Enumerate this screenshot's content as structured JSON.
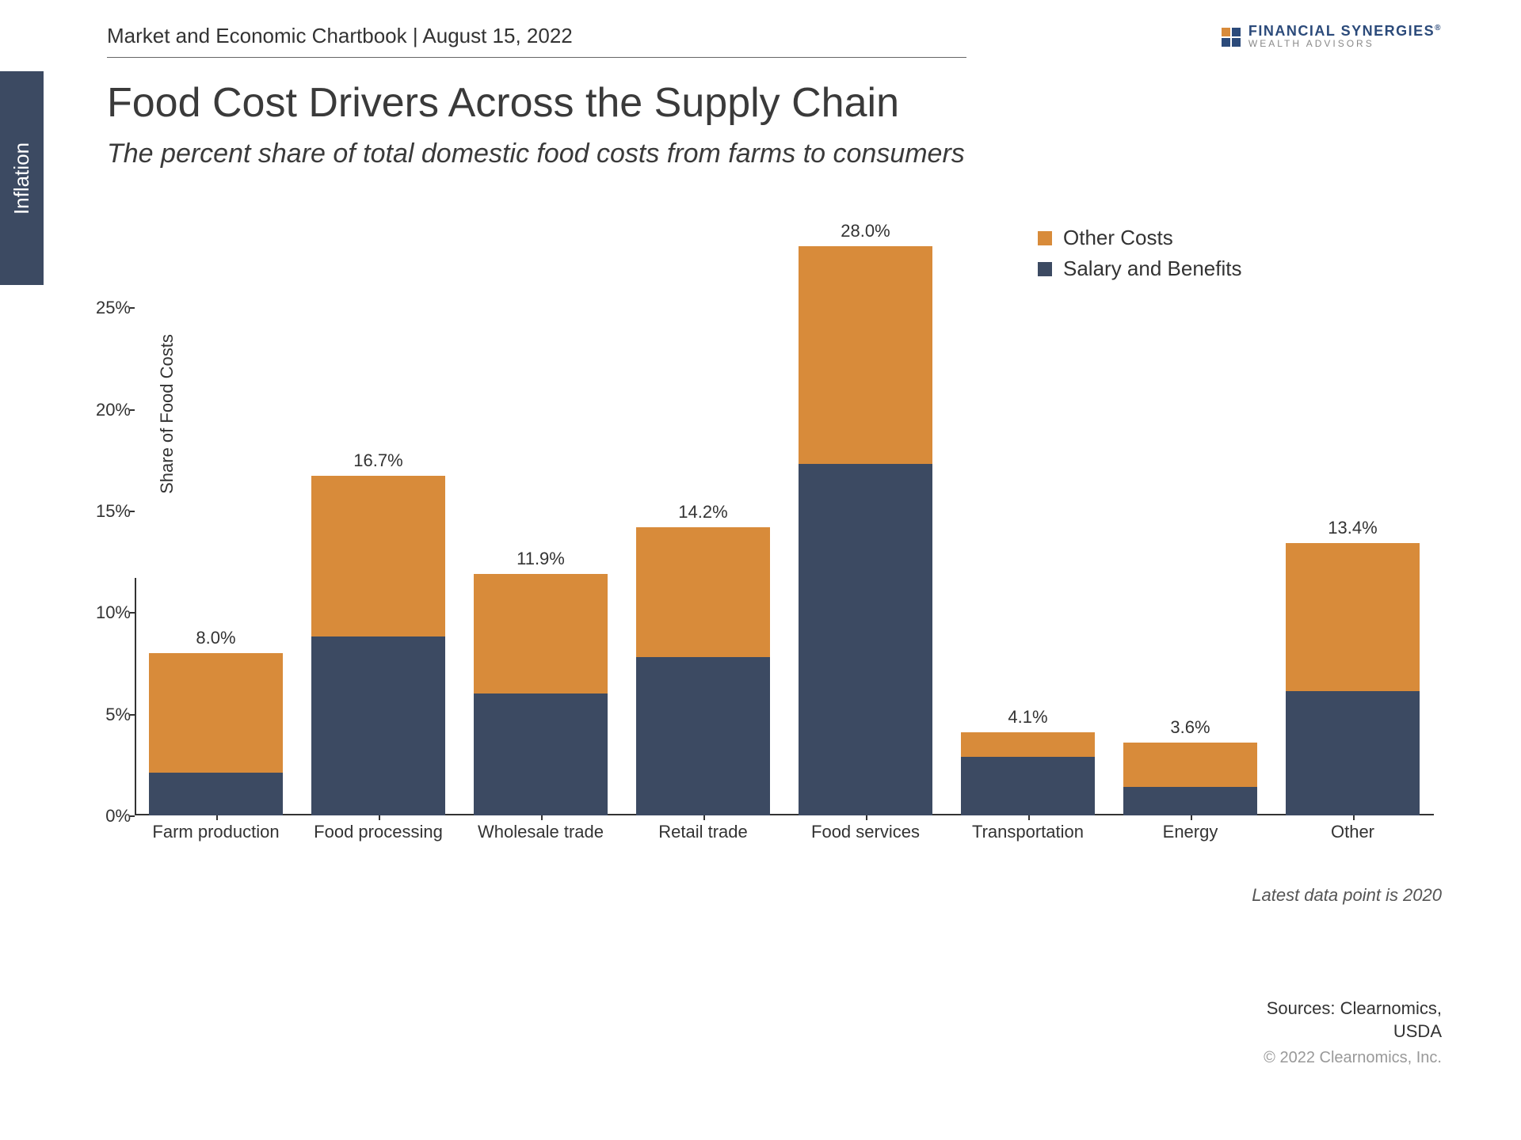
{
  "side_tab": "Inflation",
  "header": "Market and Economic Chartbook | August 15, 2022",
  "brand": {
    "top": "FINANCIAL SYNERGIES",
    "bot": "WEALTH ADVISORS"
  },
  "title": "Food Cost Drivers Across the Supply Chain",
  "subtitle": "The percent share of total domestic food costs from farms to consumers",
  "note": "Latest data point is 2020",
  "sources_1": "Sources: Clearnomics,",
  "sources_2": "USDA",
  "copyright": "© 2022 Clearnomics, Inc.",
  "chart": {
    "type": "stacked-bar",
    "ylabel": "Share of Food Costs",
    "ylim": [
      0,
      30
    ],
    "yticks": [
      0,
      5,
      10,
      15,
      20,
      25
    ],
    "ytick_labels": [
      "0%",
      "5%",
      "10%",
      "15%",
      "20%",
      "25%"
    ],
    "categories": [
      "Farm production",
      "Food processing",
      "Wholesale trade",
      "Retail trade",
      "Food services",
      "Transportation",
      "Energy",
      "Other"
    ],
    "series": [
      {
        "name": "Salary and Benefits",
        "color": "#3c4a62",
        "values": [
          2.1,
          8.8,
          6.0,
          7.8,
          17.3,
          2.9,
          1.4,
          6.1
        ]
      },
      {
        "name": "Other Costs",
        "color": "#d88b3a",
        "values": [
          5.9,
          7.9,
          5.9,
          6.4,
          10.7,
          1.2,
          2.2,
          7.3
        ]
      }
    ],
    "totals": [
      "8.0%",
      "16.7%",
      "11.9%",
      "14.2%",
      "28.0%",
      "4.1%",
      "3.6%",
      "13.4%"
    ],
    "legend": [
      {
        "label": "Other Costs",
        "color": "#d88b3a"
      },
      {
        "label": "Salary and Benefits",
        "color": "#3c4a62"
      }
    ],
    "background_color": "#ffffff",
    "bar_width_ratio": 0.82,
    "label_fontsize": 22,
    "title_fontsize": 52
  }
}
